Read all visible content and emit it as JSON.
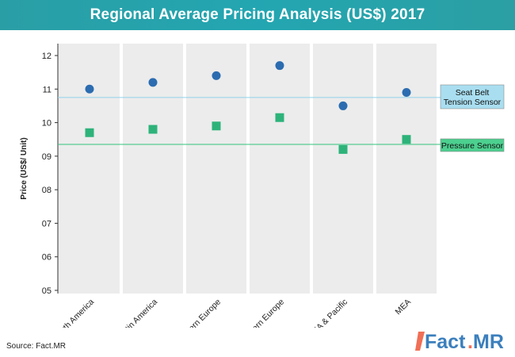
{
  "title": "Regional Average Pricing Analysis (US$) 2017",
  "source": "Source: Fact.MR",
  "logo": {
    "part1": "Fact",
    "dot": ".",
    "part2": "MR"
  },
  "colors": {
    "title_bg": "#23a6b1",
    "panel": "#ececec",
    "seat_belt": "#2b6cb0",
    "pressure": "#2db37a",
    "seat_belt_line": "#8fd3ea",
    "pressure_line": "#33c47f",
    "seat_belt_label_bg": "#a9def0",
    "pressure_label_bg": "#4cd08f"
  },
  "chart_data": {
    "type": "scatter",
    "title": "Regional Average Pricing Analysis (US$) 2017",
    "xlabel": "",
    "ylabel": "Price (US$/ Unit)",
    "ylim": [
      5,
      12.2
    ],
    "yticks": [
      "05",
      "06",
      "07",
      "08",
      "09",
      "10",
      "11",
      "12"
    ],
    "categories": [
      "North America",
      "Latin America",
      "Western Europe",
      "Eastern Europe",
      "SEA & Pacific",
      "MEA"
    ],
    "series": [
      {
        "name": "Seat Belt Tension Sensor",
        "marker": "circle",
        "values": [
          11.0,
          11.2,
          11.4,
          11.7,
          10.5,
          10.9
        ],
        "average": 10.75
      },
      {
        "name": "Pressure Sensor",
        "marker": "square",
        "values": [
          9.7,
          9.8,
          9.9,
          10.15,
          9.2,
          9.5
        ],
        "average": 9.35
      }
    ],
    "legend_labels": [
      {
        "lines": [
          "Seat Belt",
          "Tension Sensor"
        ]
      },
      {
        "lines": [
          "Pressure Sensor"
        ]
      }
    ],
    "grid": false
  }
}
